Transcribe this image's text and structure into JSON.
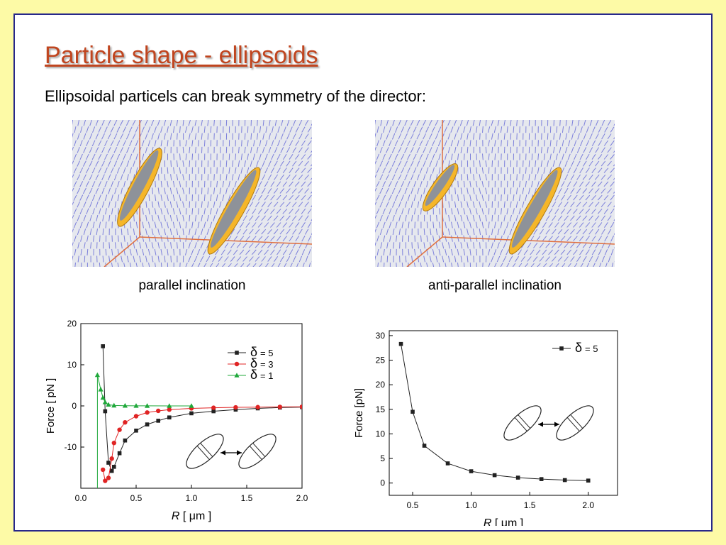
{
  "slide": {
    "title": "Particle shape - ellipsoids",
    "subtitle": "Ellipsoidal particels can break symmetry of the director:"
  },
  "figures": [
    {
      "caption": "parallel inclination"
    },
    {
      "caption": "anti-parallel inclination"
    }
  ],
  "colors": {
    "background": "#fdfaa6",
    "frame": "#27288a",
    "title": "#c0451f",
    "director_lines": "#6b6fd8",
    "particle_ring": "#f5b629",
    "series_delta5": "#222222",
    "series_delta3": "#e02424",
    "series_delta1": "#1fa83a"
  },
  "chart_data": [
    {
      "type": "line",
      "xlabel_italic": "R",
      "xlabel_unit": "[ μm ]",
      "ylabel": "Force [ pN ]",
      "xlim": [
        0.0,
        2.0
      ],
      "ylim": [
        -20,
        20
      ],
      "xticks": [
        "0.0",
        "0.5",
        "1.0",
        "1.5",
        "2.0"
      ],
      "yticks": [
        "20",
        "10",
        "0",
        "-10"
      ],
      "legend_position": "top-right",
      "series": [
        {
          "name": "δ = 5",
          "legend_symbol": "δ",
          "legend_value": "= 5",
          "marker": "square",
          "color": "#222222",
          "x": [
            0.2,
            0.22,
            0.25,
            0.28,
            0.3,
            0.35,
            0.4,
            0.5,
            0.6,
            0.7,
            0.8,
            1.0,
            1.2,
            1.4,
            1.6,
            1.8,
            2.0
          ],
          "y": [
            14.5,
            -1.3,
            -13.8,
            -15.8,
            -14.8,
            -11.5,
            -8.4,
            -6.0,
            -4.5,
            -3.6,
            -2.8,
            -1.8,
            -1.3,
            -0.9,
            -0.6,
            -0.4,
            -0.3
          ]
        },
        {
          "name": "δ = 3",
          "legend_symbol": "δ",
          "legend_value": "= 3",
          "marker": "circle",
          "color": "#e02424",
          "x": [
            0.2,
            0.22,
            0.25,
            0.28,
            0.3,
            0.35,
            0.4,
            0.5,
            0.6,
            0.7,
            0.8,
            1.0,
            1.2,
            1.4,
            1.6,
            1.8,
            2.0
          ],
          "y": [
            -15.5,
            -18.2,
            -17.5,
            -12.8,
            -9.0,
            -5.8,
            -4.0,
            -2.5,
            -1.6,
            -1.2,
            -0.9,
            -0.6,
            -0.45,
            -0.35,
            -0.3,
            -0.25,
            -0.2
          ]
        },
        {
          "name": "δ = 1",
          "legend_symbol": "δ",
          "legend_value": "= 1",
          "marker": "triangle",
          "color": "#1fa83a",
          "x": [
            0.15,
            0.18,
            0.2,
            0.22,
            0.25,
            0.3,
            0.4,
            0.5,
            0.6,
            0.8,
            1.0
          ],
          "y": [
            7.5,
            4.0,
            2.0,
            0.9,
            0.3,
            0.1,
            0.05,
            0.02,
            0.01,
            0.0,
            0.0
          ]
        }
      ]
    },
    {
      "type": "line",
      "xlabel_italic": "R",
      "xlabel_unit": "[ μm ]",
      "ylabel": "Force [pN]",
      "xlim": [
        0.3,
        2.25
      ],
      "ylim": [
        -2.5,
        31
      ],
      "xticks": [
        "0.5",
        "1.0",
        "1.5",
        "2.0"
      ],
      "yticks": [
        "30",
        "25",
        "20",
        "15",
        "10",
        "5",
        "0"
      ],
      "legend_position": "top-right",
      "series": [
        {
          "name": "δ = 5",
          "legend_symbol": "δ",
          "legend_value": "= 5",
          "marker": "square",
          "color": "#222222",
          "x": [
            0.4,
            0.5,
            0.6,
            0.8,
            1.0,
            1.2,
            1.4,
            1.6,
            1.8,
            2.0
          ],
          "y": [
            28.3,
            14.5,
            7.6,
            4.0,
            2.4,
            1.6,
            1.1,
            0.8,
            0.6,
            0.5
          ]
        }
      ]
    }
  ]
}
